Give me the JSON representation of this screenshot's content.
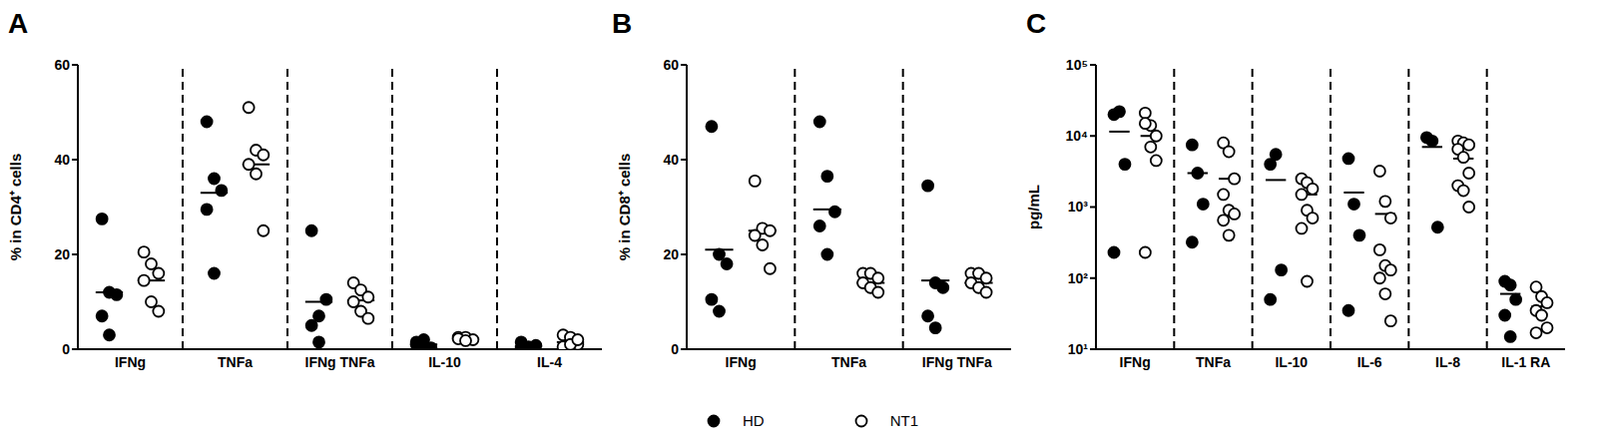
{
  "chart_data": [
    {
      "type": "scatter",
      "title": "A",
      "y_label": "% in CD4⁺ cells",
      "categories": [
        "IFNg",
        "TNFa",
        "IFNg TNFa",
        "IL-10",
        "IL-4"
      ],
      "ylim": [
        0,
        60
      ],
      "yticks": [
        0,
        20,
        40,
        60
      ],
      "series": [
        {
          "name": "HD",
          "color": "#000000",
          "marker": "filled",
          "values": [
            [
              27.5,
              12,
              11.5,
              7,
              3
            ],
            [
              48,
              36,
              33.5,
              29.5,
              16
            ],
            [
              25,
              7,
              10.5,
              5,
              1.5
            ],
            [
              1.5,
              0.5,
              0.3,
              1,
              2
            ],
            [
              0.3,
              0.5,
              0.8,
              1.5,
              0.2
            ]
          ],
          "means": [
            12,
            33,
            10,
            1,
            0.6
          ]
        },
        {
          "name": "NT1",
          "color": "#000000",
          "marker": "open",
          "values": [
            [
              20.5,
              18,
              16,
              14.5,
              10,
              8
            ],
            [
              51,
              42,
              41,
              39,
              37,
              25
            ],
            [
              14,
              12.5,
              11,
              10,
              8,
              6.5
            ],
            [
              2.5,
              2.5,
              2,
              2.2,
              1.8
            ],
            [
              3,
              2.5,
              1,
              0.5,
              1,
              2
            ]
          ],
          "means": [
            14.5,
            39,
            10.3,
            2.2,
            1.5
          ]
        }
      ]
    },
    {
      "type": "scatter",
      "title": "B",
      "y_label": "% in CD8⁺ cells",
      "legend": "bottom",
      "categories": [
        "IFNg",
        "TNFa",
        "IFNg TNFa"
      ],
      "ylim": [
        0,
        60
      ],
      "yticks": [
        0,
        20,
        40,
        60
      ],
      "series": [
        {
          "name": "HD",
          "color": "#000000",
          "marker": "filled",
          "values": [
            [
              47,
              20,
              18,
              10.5,
              8
            ],
            [
              48,
              36.5,
              29,
              26,
              20
            ],
            [
              34.5,
              14,
              13,
              7,
              4.5
            ]
          ],
          "means": [
            21,
            29.5,
            14.5
          ]
        },
        {
          "name": "NT1",
          "color": "#000000",
          "marker": "open",
          "values": [
            [
              35.5,
              25.5,
              25,
              24,
              22,
              17
            ],
            [
              16,
              16,
              15,
              14,
              13,
              12
            ],
            [
              16,
              16,
              15,
              14,
              13,
              12
            ]
          ],
          "means": [
            25,
            14,
            14
          ]
        }
      ]
    },
    {
      "type": "scatter",
      "title": "C",
      "y_label": "pg/mL",
      "log": "y",
      "categories": [
        "IFNg",
        "TNFa",
        "IL-10",
        "IL-6",
        "IL-8",
        "IL-1 RA"
      ],
      "ylim": [
        10,
        100000
      ],
      "yticks": [
        {
          "value": 10,
          "label": "10¹"
        },
        {
          "value": 100,
          "label": "10²"
        },
        {
          "value": 1000,
          "label": "10³"
        },
        {
          "value": 10000,
          "label": "10⁴"
        },
        {
          "value": 100000,
          "label": "10⁵"
        }
      ],
      "series": [
        {
          "name": "HD",
          "color": "#000000",
          "marker": "filled",
          "values": [
            [
              20000,
              22000,
              4000,
              230
            ],
            [
              7500,
              3000,
              1100,
              320
            ],
            [
              4000,
              5500,
              130,
              50
            ],
            [
              4800,
              1100,
              400,
              35
            ],
            [
              9500,
              8500,
              520
            ],
            [
              90,
              80,
              50,
              30,
              15
            ]
          ],
          "means": [
            11500,
            3000,
            2400,
            1600,
            7000,
            60
          ]
        },
        {
          "name": "NT1",
          "color": "#000000",
          "marker": "open",
          "values": [
            [
              21000,
              14000,
              10000,
              15000,
              7000,
              4500,
              230
            ],
            [
              8000,
              6000,
              2500,
              1500,
              900,
              800,
              650,
              400
            ],
            [
              2500,
              2200,
              1800,
              1500,
              900,
              700,
              500,
              90
            ],
            [
              3200,
              1200,
              700,
              250,
              150,
              130,
              100,
              60,
              25
            ],
            [
              8500,
              8000,
              7500,
              6500,
              5000,
              3000,
              2000,
              1700,
              1000
            ],
            [
              75,
              55,
              45,
              35,
              30,
              20,
              17
            ]
          ],
          "means": [
            10000,
            2500,
            1500,
            800,
            4800,
            40
          ]
        }
      ]
    }
  ]
}
